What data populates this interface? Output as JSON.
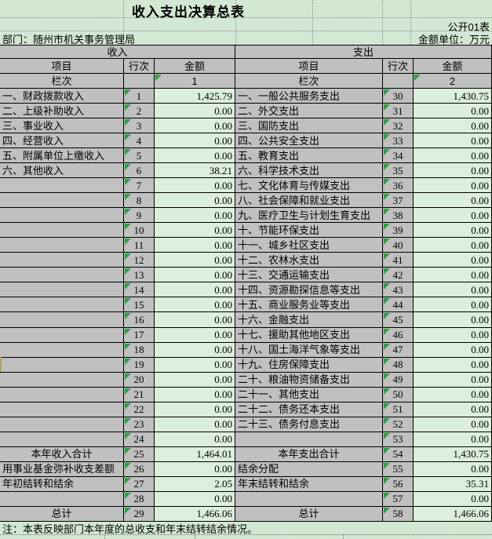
{
  "page": {
    "title": "收入支出决算总表",
    "table_code": "公开01表",
    "department": "部门：随州市机关事务管理局",
    "unit": "金额单位：万元",
    "note": "注：本表反映部门本年度的总收支和年末结转结余情况。"
  },
  "table": {
    "income_header": "收入",
    "expense_header": "支出",
    "columns": {
      "item": "项目",
      "line": "行次",
      "amount": "金额"
    },
    "index_row": {
      "label": "栏次",
      "income_index": "1",
      "expense_index": "2"
    },
    "income_rows": [
      {
        "label": "一、财政拨款收入",
        "align": "left",
        "line": "1",
        "amount": "1,425.79"
      },
      {
        "label": "二、上级补助收入",
        "align": "left",
        "line": "2",
        "amount": "0.00"
      },
      {
        "label": "三、事业收入",
        "align": "left",
        "line": "3",
        "amount": "0.00"
      },
      {
        "label": "四、经营收入",
        "align": "left",
        "line": "4",
        "amount": "0.00"
      },
      {
        "label": "五、附属单位上缴收入",
        "align": "left",
        "line": "5",
        "amount": "0.00"
      },
      {
        "label": "六、其他收入",
        "align": "left",
        "line": "6",
        "amount": "38.21"
      },
      {
        "label": "",
        "align": "left",
        "line": "7",
        "amount": "0.00"
      },
      {
        "label": "",
        "align": "left",
        "line": "8",
        "amount": "0.00"
      },
      {
        "label": "",
        "align": "left",
        "line": "9",
        "amount": "0.00"
      },
      {
        "label": "",
        "align": "left",
        "line": "10",
        "amount": "0.00"
      },
      {
        "label": "",
        "align": "left",
        "line": "11",
        "amount": "0.00"
      },
      {
        "label": "",
        "align": "left",
        "line": "12",
        "amount": "0.00"
      },
      {
        "label": "",
        "align": "left",
        "line": "13",
        "amount": "0.00"
      },
      {
        "label": "",
        "align": "left",
        "line": "14",
        "amount": "0.00"
      },
      {
        "label": "",
        "align": "left",
        "line": "15",
        "amount": "0.00"
      },
      {
        "label": "",
        "align": "left",
        "line": "16",
        "amount": "0.00"
      },
      {
        "label": "",
        "align": "left",
        "line": "17",
        "amount": "0.00"
      },
      {
        "label": "",
        "align": "left",
        "line": "18",
        "amount": "0.00"
      },
      {
        "label": "",
        "align": "left",
        "line": "19",
        "amount": "0.00"
      },
      {
        "label": "",
        "align": "left",
        "line": "20",
        "amount": "0.00"
      },
      {
        "label": "",
        "align": "left",
        "line": "21",
        "amount": "0.00"
      },
      {
        "label": "",
        "align": "left",
        "line": "22",
        "amount": "0.00"
      },
      {
        "label": "",
        "align": "left",
        "line": "23",
        "amount": "0.00"
      },
      {
        "label": "",
        "align": "left",
        "line": "24",
        "amount": "0.00"
      },
      {
        "label": "本年收入合计",
        "align": "center",
        "line": "25",
        "amount": "1,464.01"
      },
      {
        "label": "用事业基金弥补收支差额",
        "align": "left",
        "line": "26",
        "amount": "0.00"
      },
      {
        "label": "年初结转和结余",
        "align": "left",
        "line": "27",
        "amount": "2.05"
      },
      {
        "label": "",
        "align": "left",
        "line": "28",
        "amount": "0.00"
      },
      {
        "label": "总计",
        "align": "center",
        "line": "29",
        "amount": "1,466.06"
      }
    ],
    "expense_rows": [
      {
        "label": "一、一般公共服务支出",
        "align": "left",
        "line": "30",
        "amount": "1,430.75"
      },
      {
        "label": "二、外交支出",
        "align": "left",
        "line": "31",
        "amount": "0.00"
      },
      {
        "label": "三、国防支出",
        "align": "left",
        "line": "32",
        "amount": "0.00"
      },
      {
        "label": "四、公共安全支出",
        "align": "left",
        "line": "33",
        "amount": "0.00"
      },
      {
        "label": "五、教育支出",
        "align": "left",
        "line": "34",
        "amount": "0.00"
      },
      {
        "label": "六、科学技术支出",
        "align": "left",
        "line": "35",
        "amount": "0.00"
      },
      {
        "label": "七、文化体育与传媒支出",
        "align": "left",
        "line": "36",
        "amount": "0.00"
      },
      {
        "label": "八、社会保障和就业支出",
        "align": "left",
        "line": "37",
        "amount": "0.00"
      },
      {
        "label": "九、医疗卫生与计划生育支出",
        "align": "left",
        "line": "38",
        "amount": "0.00"
      },
      {
        "label": "十、节能环保支出",
        "align": "left",
        "line": "39",
        "amount": "0.00"
      },
      {
        "label": "十一、城乡社区支出",
        "align": "left",
        "line": "40",
        "amount": "0.00"
      },
      {
        "label": "十二、农林水支出",
        "align": "left",
        "line": "41",
        "amount": "0.00"
      },
      {
        "label": "十三、交通运输支出",
        "align": "left",
        "line": "42",
        "amount": "0.00"
      },
      {
        "label": "十四、资源勘探信息等支出",
        "align": "left",
        "line": "43",
        "amount": "0.00"
      },
      {
        "label": "十五、商业服务业等支出",
        "align": "left",
        "line": "44",
        "amount": "0.00"
      },
      {
        "label": "十六、金融支出",
        "align": "left",
        "line": "45",
        "amount": "0.00"
      },
      {
        "label": "十七、援助其他地区支出",
        "align": "left",
        "line": "46",
        "amount": "0.00"
      },
      {
        "label": "十八、国土海洋气象等支出",
        "align": "left",
        "line": "47",
        "amount": "0.00"
      },
      {
        "label": "十九、住房保障支出",
        "align": "left",
        "line": "48",
        "amount": "0.00"
      },
      {
        "label": "二十、粮油物资储备支出",
        "align": "left",
        "line": "49",
        "amount": "0.00"
      },
      {
        "label": "二十一、其他支出",
        "align": "left",
        "line": "50",
        "amount": "0.00"
      },
      {
        "label": "二十二、债务还本支出",
        "align": "left",
        "line": "51",
        "amount": "0.00"
      },
      {
        "label": "二十三、债务付息支出",
        "align": "left",
        "line": "52",
        "amount": "0.00"
      },
      {
        "label": "",
        "align": "left",
        "line": "53",
        "amount": "0.00"
      },
      {
        "label": "本年支出合计",
        "align": "center",
        "line": "54",
        "amount": "1,430.75"
      },
      {
        "label": "结余分配",
        "align": "left",
        "line": "55",
        "amount": "0.00"
      },
      {
        "label": "年末结转和结余",
        "align": "left",
        "line": "56",
        "amount": "35.31"
      },
      {
        "label": "",
        "align": "left",
        "line": "57",
        "amount": "0.00"
      },
      {
        "label": "总计",
        "align": "center",
        "line": "58",
        "amount": "1,466.06"
      }
    ]
  },
  "colors": {
    "margin_green": "#d2e8d2",
    "cell_green": "#dcefdc",
    "header_gray": "#c0c0c0",
    "triangle_green": "#2f9e44",
    "border_black": "#000000"
  }
}
